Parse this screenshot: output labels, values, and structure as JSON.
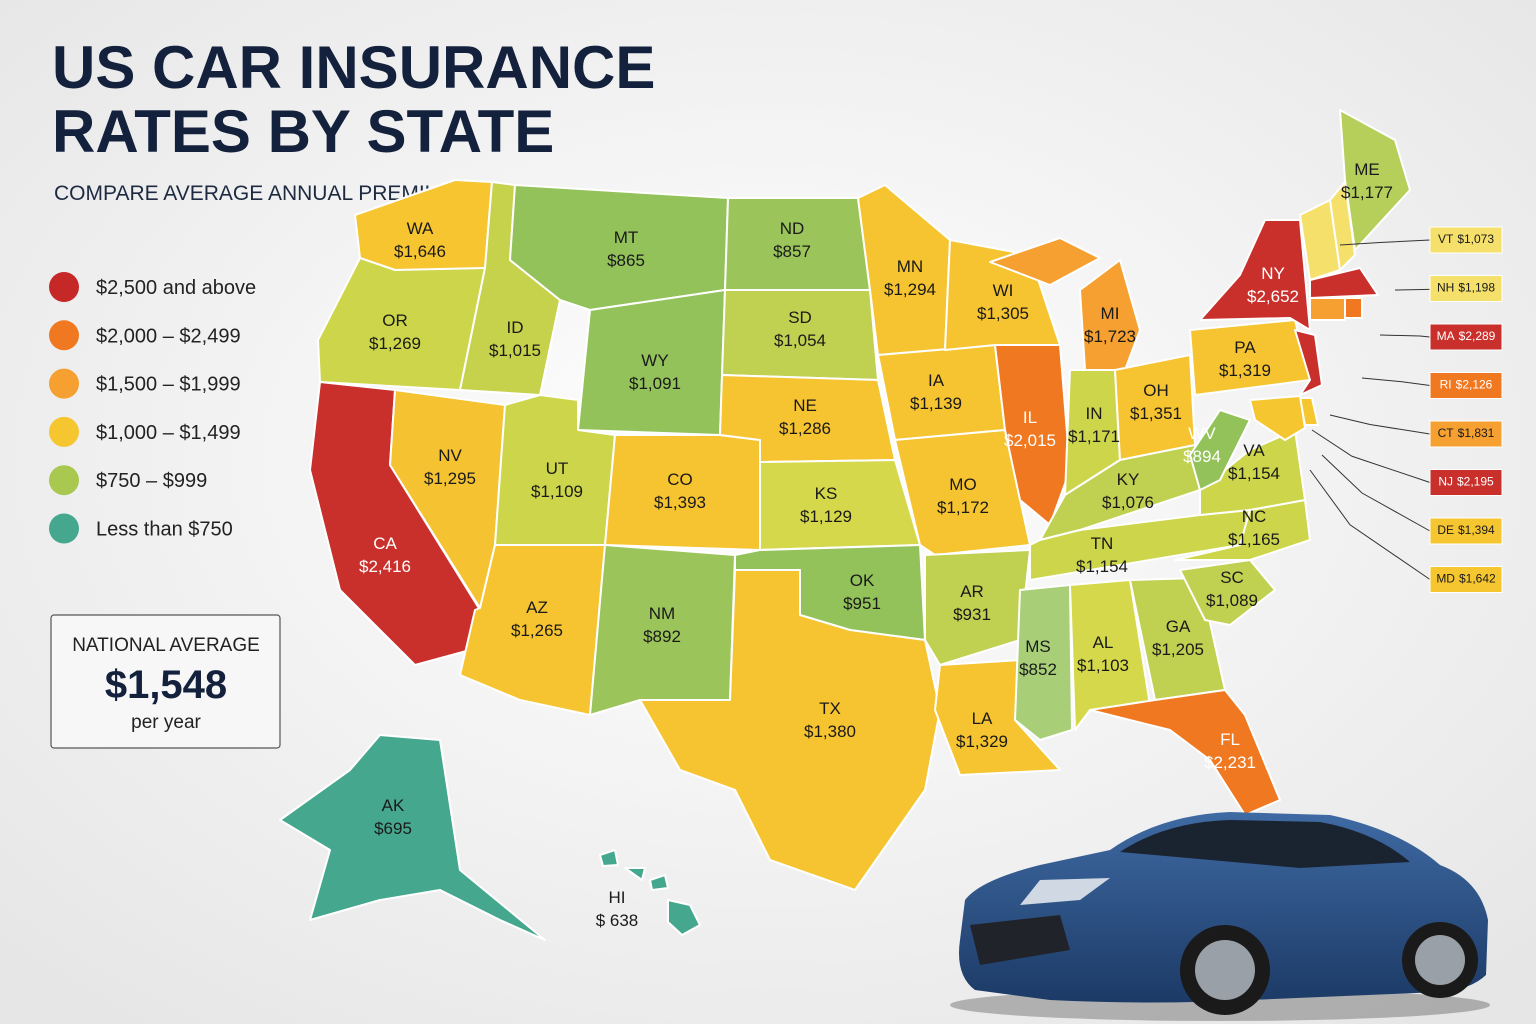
{
  "header": {
    "title_line1": "US CAR INSURANCE",
    "title_line2": "RATES BY STATE",
    "subtitle": "COMPARE AVERAGE ANNUAL PREMIUMS"
  },
  "legend": [
    {
      "label": "$2,500 and above",
      "color": "#c62828"
    },
    {
      "label": "$2,000 – $2,499",
      "color": "#f07820"
    },
    {
      "label": "$1,500 – $1,999",
      "color": "#f5a030"
    },
    {
      "label": "$1,000 – $1,499",
      "color": "#f6c630"
    },
    {
      "label": "$750 – $999",
      "color": "#a8c850"
    },
    {
      "label": "Less than $750",
      "color": "#45a78e"
    }
  ],
  "national_average": {
    "label": "NATIONAL AVERAGE",
    "amount": "$1,548",
    "unit": "per year"
  },
  "states": [
    {
      "abbr": "WA",
      "premium": "$1,646",
      "color": "#f6c530"
    },
    {
      "abbr": "OR",
      "premium": "$1,269",
      "color": "#cdd54a"
    },
    {
      "abbr": "CA",
      "premium": "$2,416",
      "color": "#c9302c"
    },
    {
      "abbr": "NV",
      "premium": "$1,295",
      "color": "#f5c232"
    },
    {
      "abbr": "ID",
      "premium": "$1,015",
      "color": "#c6d14c"
    },
    {
      "abbr": "MT",
      "premium": "$865",
      "color": "#93c25a"
    },
    {
      "abbr": "WY",
      "premium": "$1,091",
      "color": "#93c25a"
    },
    {
      "abbr": "UT",
      "premium": "$1,109",
      "color": "#cdd54a"
    },
    {
      "abbr": "CO",
      "premium": "$1,393",
      "color": "#f6c430"
    },
    {
      "abbr": "AZ",
      "premium": "$1,265",
      "color": "#f6c430"
    },
    {
      "abbr": "NM",
      "premium": "$892",
      "color": "#9bc55a"
    },
    {
      "abbr": "ND",
      "premium": "$857",
      "color": "#9bc55a"
    },
    {
      "abbr": "SD",
      "premium": "$1,054",
      "color": "#c0d050"
    },
    {
      "abbr": "NE",
      "premium": "$1,286",
      "color": "#f6c430"
    },
    {
      "abbr": "KS",
      "premium": "$1,129",
      "color": "#d5d84a"
    },
    {
      "abbr": "OK",
      "premium": "$951",
      "color": "#93c25a"
    },
    {
      "abbr": "TX",
      "premium": "$1,380",
      "color": "#f6c430"
    },
    {
      "abbr": "MN",
      "premium": "$1,294",
      "color": "#f6c430"
    },
    {
      "abbr": "IA",
      "premium": "$1,139",
      "color": "#f6c430"
    },
    {
      "abbr": "MO",
      "premium": "$1,172",
      "color": "#f6c430"
    },
    {
      "abbr": "AR",
      "premium": "$931",
      "color": "#c0d050"
    },
    {
      "abbr": "LA",
      "premium": "$1,329",
      "color": "#f6c430"
    },
    {
      "abbr": "WI",
      "premium": "$1,305",
      "color": "#f6c430"
    },
    {
      "abbr": "IL",
      "premium": "$2,015",
      "color": "#f07820"
    },
    {
      "abbr": "MI",
      "premium": "$1,723",
      "color": "#f5a030"
    },
    {
      "abbr": "IN",
      "premium": "$1,171",
      "color": "#cdd54a"
    },
    {
      "abbr": "OH",
      "premium": "$1,351",
      "color": "#f6c430"
    },
    {
      "abbr": "KY",
      "premium": "$1,076",
      "color": "#c0d050"
    },
    {
      "abbr": "TN",
      "premium": "$1,154",
      "color": "#cdd54a"
    },
    {
      "abbr": "MS",
      "premium": "$852",
      "color": "#a8cf78"
    },
    {
      "abbr": "AL",
      "premium": "$1,103",
      "color": "#d5d84a"
    },
    {
      "abbr": "GA",
      "premium": "$1,205",
      "color": "#c0d050"
    },
    {
      "abbr": "FL",
      "premium": "$2,231",
      "color": "#f07820"
    },
    {
      "abbr": "SC",
      "premium": "$1,089",
      "color": "#c0d050"
    },
    {
      "abbr": "NC",
      "premium": "$1,165",
      "color": "#cdd54a"
    },
    {
      "abbr": "VA",
      "premium": "$1,154",
      "color": "#cdd54a"
    },
    {
      "abbr": "WV",
      "premium": "$894",
      "color": "#93c25a"
    },
    {
      "abbr": "PA",
      "premium": "$1,319",
      "color": "#f6c430"
    },
    {
      "abbr": "NY",
      "premium": "$2,652",
      "color": "#c9302c"
    },
    {
      "abbr": "ME",
      "premium": "$1,177",
      "color": "#b6cf5a"
    },
    {
      "abbr": "AK",
      "premium": "$695",
      "color": "#45a78e"
    },
    {
      "abbr": "HI",
      "premium": "$ 638",
      "color": "#45a78e"
    }
  ],
  "callouts": [
    {
      "abbr": "VT",
      "premium": "$1,073",
      "color": "#f4e06a"
    },
    {
      "abbr": "NH",
      "premium": "$1,198",
      "color": "#f4e06a"
    },
    {
      "abbr": "MA",
      "premium": "$2,289",
      "color": "#c9302c"
    },
    {
      "abbr": "RI",
      "premium": "$2,126",
      "color": "#f07820"
    },
    {
      "abbr": "CT",
      "premium": "$1,831",
      "color": "#f5a030"
    },
    {
      "abbr": "NJ",
      "premium": "$2,195",
      "color": "#c9302c"
    },
    {
      "abbr": "DE",
      "premium": "$1,394",
      "color": "#f6c630"
    },
    {
      "abbr": "MD",
      "premium": "$1,642",
      "color": "#f6c630"
    }
  ]
}
